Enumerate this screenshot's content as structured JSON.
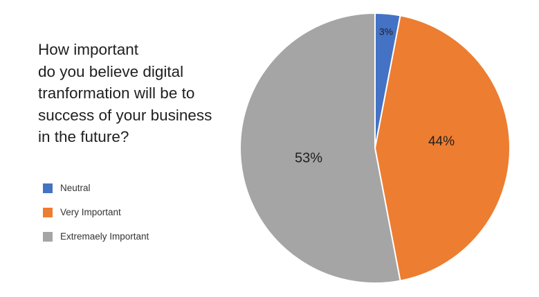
{
  "title_lines": [
    "How important",
    "do you believe digital",
    "tranformation will be to",
    "success of your business",
    "in the future?"
  ],
  "chart_data": {
    "type": "pie",
    "title": "How important do you believe digital tranformation will be to success of your business in the future?",
    "categories": [
      "Neutral",
      "Very Important",
      "Extremaely Important"
    ],
    "values": [
      3,
      44,
      53
    ],
    "value_labels": [
      "3%",
      "44%",
      "53%"
    ],
    "colors": [
      "#4472C4",
      "#ED7D31",
      "#A5A5A5"
    ],
    "legend_position": "left"
  }
}
